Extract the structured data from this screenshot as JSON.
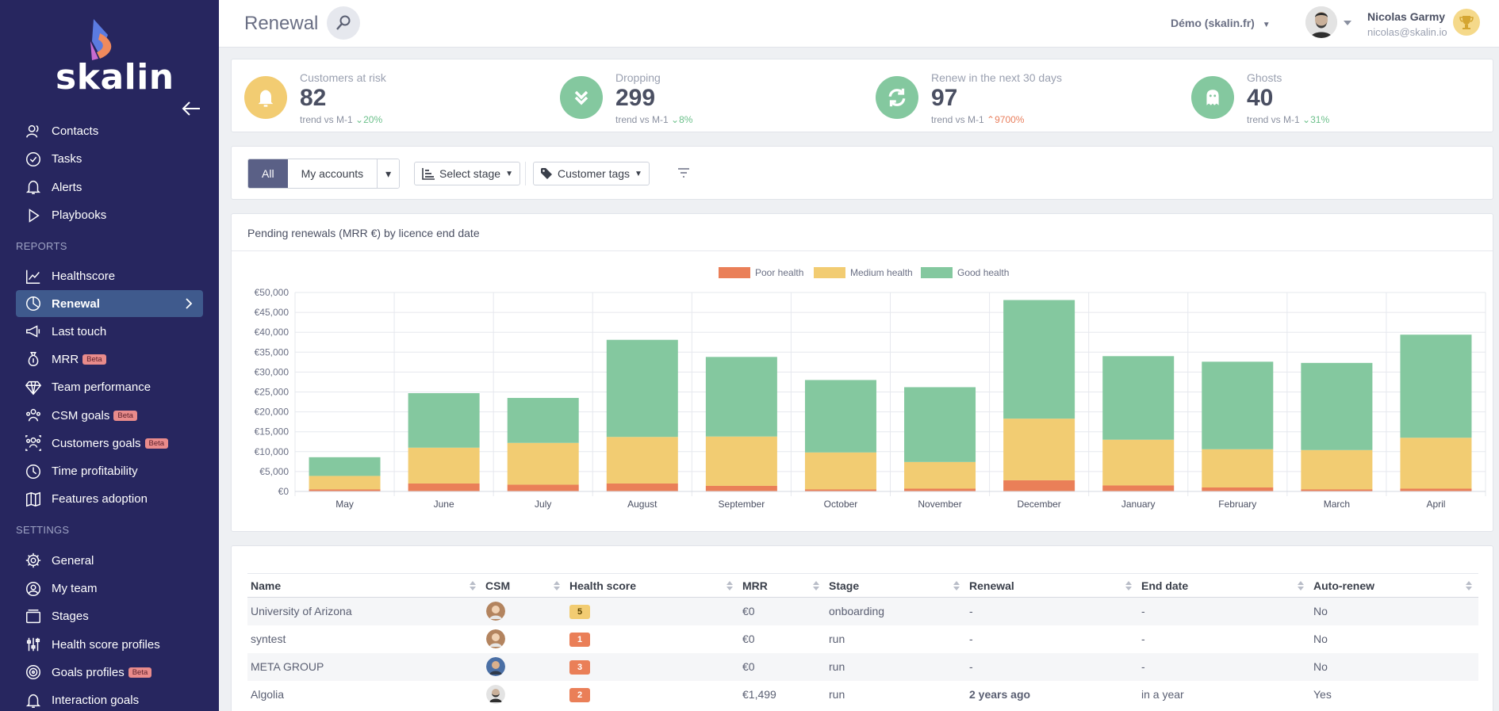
{
  "app": {
    "logo": "skalin"
  },
  "sidebar": {
    "items": [
      {
        "label": "Contacts",
        "icon": "contacts-icon"
      },
      {
        "label": "Tasks",
        "icon": "tasks-icon"
      },
      {
        "label": "Alerts",
        "icon": "bell-icon"
      },
      {
        "label": "Playbooks",
        "icon": "play-icon"
      }
    ],
    "reports_title": "REPORTS",
    "reports": [
      {
        "label": "Healthscore",
        "icon": "line-chart-icon"
      },
      {
        "label": "Renewal",
        "icon": "pie-chart-icon",
        "active": true
      },
      {
        "label": "Last touch",
        "icon": "megaphone-icon"
      },
      {
        "label": "MRR",
        "icon": "money-bag-icon",
        "badge": "Beta"
      },
      {
        "label": "Team performance",
        "icon": "diamond-icon"
      },
      {
        "label": "CSM goals",
        "icon": "team-icon",
        "badge": "Beta"
      },
      {
        "label": "Customers goals",
        "icon": "group-icon",
        "badge": "Beta"
      },
      {
        "label": "Time profitability",
        "icon": "clock-icon"
      },
      {
        "label": "Features adoption",
        "icon": "map-icon"
      }
    ],
    "settings_title": "SETTINGS",
    "settings": [
      {
        "label": "General",
        "icon": "gear-icon"
      },
      {
        "label": "My team",
        "icon": "user-circle-icon"
      },
      {
        "label": "Stages",
        "icon": "layers-icon"
      },
      {
        "label": "Health score profiles",
        "icon": "sliders-icon"
      },
      {
        "label": "Goals profiles",
        "icon": "target-icon",
        "badge": "Beta"
      },
      {
        "label": "Interaction goals",
        "icon": "bell-icon"
      }
    ]
  },
  "header": {
    "title": "Renewal",
    "workspace": "Démo (skalin.fr)",
    "user_name": "Nicolas Garmy",
    "user_email": "nicolas@skalin.io"
  },
  "kpis": [
    {
      "label": "Customers at risk",
      "value": "82",
      "trend_prefix": "trend vs M-1",
      "trend": "20%",
      "direction": "down",
      "color": "#f2cc72"
    },
    {
      "label": "Dropping",
      "value": "299",
      "trend_prefix": "trend vs M-1",
      "trend": "8%",
      "direction": "down",
      "color": "#84c89f"
    },
    {
      "label": "Renew in the next 30 days",
      "value": "97",
      "trend_prefix": "trend vs M-1",
      "trend": "9700%",
      "direction": "up",
      "color": "#84c89f"
    },
    {
      "label": "Ghosts",
      "value": "40",
      "trend_prefix": "trend vs M-1",
      "trend": "31%",
      "direction": "down",
      "color": "#84c89f"
    }
  ],
  "filters": {
    "all": "All",
    "my_accounts": "My accounts",
    "stage": "Select stage",
    "tags": "Customer tags"
  },
  "chart_data": {
    "type": "bar",
    "stacked": true,
    "title": "Pending renewals (MRR €) by licence end date",
    "categories": [
      "May",
      "June",
      "July",
      "August",
      "September",
      "October",
      "November",
      "December",
      "January",
      "February",
      "March",
      "April"
    ],
    "series": [
      {
        "name": "Poor health",
        "color": "#ea7f58",
        "values": [
          500,
          2000,
          1700,
          2000,
          1400,
          500,
          700,
          2800,
          1500,
          1000,
          500,
          700
        ]
      },
      {
        "name": "Medium health",
        "color": "#f2cc72",
        "values": [
          3400,
          9000,
          10500,
          11700,
          12400,
          9300,
          6700,
          15500,
          11500,
          9600,
          9900,
          12800
        ]
      },
      {
        "name": "Good health",
        "color": "#84c89f",
        "values": [
          4700,
          13700,
          11300,
          24400,
          20000,
          18200,
          18800,
          29800,
          21000,
          22000,
          21900,
          25900
        ]
      }
    ],
    "ylim": [
      0,
      50000
    ],
    "yticks": [
      "€0",
      "€5,000",
      "€10,000",
      "€15,000",
      "€20,000",
      "€25,000",
      "€30,000",
      "€35,000",
      "€40,000",
      "€45,000",
      "€50,000"
    ],
    "legend": "top-center",
    "grid": true
  },
  "table": {
    "columns": [
      "Name",
      "CSM",
      "Health score",
      "MRR",
      "Stage",
      "Renewal",
      "End date",
      "Auto-renew"
    ],
    "rows": [
      {
        "name": "University of Arizona",
        "score": "5",
        "score_color": "y",
        "mrr": "€0",
        "stage": "onboarding",
        "renewal": "-",
        "end": "-",
        "auto": "No"
      },
      {
        "name": "syntest",
        "score": "1",
        "score_color": "o",
        "mrr": "€0",
        "stage": "run",
        "renewal": "-",
        "end": "-",
        "auto": "No"
      },
      {
        "name": "META GROUP",
        "score": "3",
        "score_color": "o",
        "mrr": "€0",
        "stage": "run",
        "renewal": "-",
        "end": "-",
        "auto": "No"
      },
      {
        "name": "Algolia",
        "score": "2",
        "score_color": "o",
        "mrr": "€1,499",
        "stage": "run",
        "renewal": "2 years ago",
        "end": "in a year",
        "auto": "Yes"
      }
    ]
  }
}
